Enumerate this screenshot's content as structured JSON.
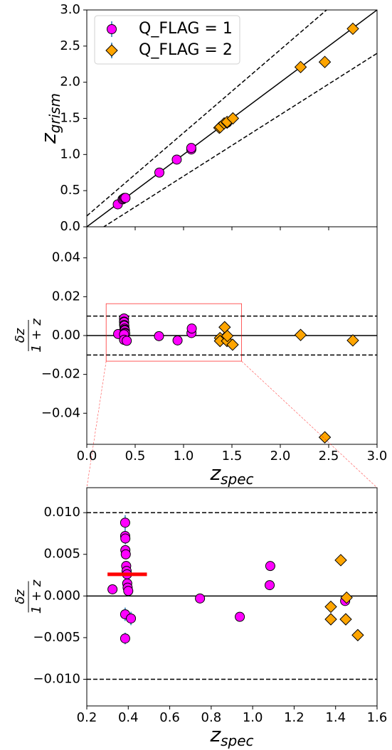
{
  "chart_data": [
    {
      "type": "scatter",
      "xlim": [
        0,
        3
      ],
      "ylim": [
        0,
        3
      ],
      "xticks": [
        {
          "value": 0,
          "label": "0.0"
        },
        0.5,
        {
          "value": 1,
          "label": "1.0"
        },
        1.5,
        {
          "value": 2,
          "label": "2.0"
        },
        2.5,
        {
          "value": 3,
          "label": "3.0"
        }
      ],
      "show_xtick_labels": false,
      "yticks": [
        {
          "value": 0,
          "label": "0.0"
        },
        0.5,
        {
          "value": 1,
          "label": "1.0"
        },
        1.5,
        {
          "value": 2,
          "label": "2.0"
        },
        2.5,
        {
          "value": 3,
          "label": "3.0"
        }
      ],
      "ylabel": "z",
      "ylabel_sub": "grism",
      "legend": "upper left",
      "lines": [
        {
          "slope": 1,
          "intercept": 0,
          "dash": false
        },
        {
          "slope": 1.15,
          "intercept": 0.15,
          "dash": true
        },
        {
          "slope": 0.85,
          "intercept": -0.15,
          "dash": true
        }
      ],
      "series": [
        {
          "name": "Q_FLAG = 1",
          "color": "#ff00ff",
          "marker": "circle",
          "x": [
            0.32,
            0.37,
            0.38,
            0.39,
            0.4,
            0.75,
            0.93,
            1.08,
            1.08,
            1.45
          ],
          "values": [
            0.31,
            0.38,
            0.39,
            0.4,
            0.4,
            0.75,
            0.93,
            1.07,
            1.09,
            1.44
          ]
        },
        {
          "name": "Q_FLAG = 2",
          "color": "#ffa500",
          "marker": "diamond",
          "x": [
            1.37,
            1.38,
            1.42,
            1.45,
            1.45,
            1.51,
            2.21,
            2.46,
            2.75
          ],
          "values": [
            1.37,
            1.38,
            1.43,
            1.44,
            1.45,
            1.5,
            2.21,
            2.28,
            2.74
          ]
        }
      ]
    },
    {
      "type": "scatter",
      "xlim": [
        0,
        3
      ],
      "ylim": [
        -0.056,
        0.056
      ],
      "xticks": [
        {
          "value": 0,
          "label": "0.0"
        },
        0.5,
        {
          "value": 1,
          "label": "1.0"
        },
        1.5,
        {
          "value": 2,
          "label": "2.0"
        },
        2.5,
        {
          "value": 3,
          "label": "3.0"
        }
      ],
      "show_xtick_labels": true,
      "yticks": [
        {
          "value": -0.04,
          "label": "−0.04"
        },
        {
          "value": -0.02,
          "label": "−0.02"
        },
        {
          "value": 0,
          "label": "0.00"
        },
        {
          "value": 0.02,
          "label": "0.02"
        },
        {
          "value": 0.04,
          "label": "0.04"
        }
      ],
      "ylabel_num": "δz",
      "ylabel_den": "1 + z",
      "xlabel": "z",
      "xlabel_sub": "spec",
      "hlines": [
        {
          "y": 0,
          "dash": false
        },
        {
          "y": 0.01,
          "dash": true
        },
        {
          "y": -0.01,
          "dash": true
        }
      ],
      "zoom_box": {
        "x": [
          0.2,
          1.6
        ],
        "y": [
          -0.0132,
          0.0164
        ],
        "color": "#ff0000"
      },
      "series": [
        {
          "color": "#ff00ff",
          "marker": "circle",
          "x": [
            0.324,
            0.385,
            0.385,
            0.386,
            0.386,
            0.388,
            0.39,
            0.392,
            0.394,
            0.395,
            0.397,
            0.385,
            0.385,
            0.413,
            0.746,
            0.938,
            1.082,
            1.085,
            1.446
          ],
          "values": [
            0.0008,
            0.0088,
            0.0072,
            0.0069,
            0.0055,
            0.005,
            0.0036,
            0.003,
            0.0026,
            0.0015,
            0.001,
            0.0006,
            -0.0022,
            -0.0027,
            -0.0003,
            -0.0025,
            0.0013,
            0.0036,
            -0.0006
          ]
        },
        {
          "color": "#ffa500",
          "marker": "diamond",
          "x": [
            1.377,
            1.377,
            1.425,
            1.449,
            1.453,
            1.507,
            2.21,
            2.46,
            2.75
          ],
          "values": [
            -0.0013,
            -0.0028,
            0.0043,
            -0.0028,
            -0.0002,
            -0.0047,
            0.0003,
            -0.0524,
            -0.0025
          ]
        }
      ]
    },
    {
      "type": "scatter",
      "xlim": [
        0.2,
        1.6
      ],
      "ylim": [
        -0.0132,
        0.013
      ],
      "xticks": [
        0.2,
        0.4,
        0.6,
        0.8,
        {
          "value": 1,
          "label": "1.0"
        },
        1.2,
        1.4,
        1.6
      ],
      "show_xtick_labels": true,
      "yticks": [
        {
          "value": -0.01,
          "label": "−0.010"
        },
        {
          "value": -0.005,
          "label": "−0.005"
        },
        {
          "value": 0,
          "label": "0.000"
        },
        {
          "value": 0.005,
          "label": "0.005"
        },
        {
          "value": 0.01,
          "label": "0.010"
        }
      ],
      "ylabel_num": "δz",
      "ylabel_den": "1 + z",
      "xlabel": "z",
      "xlabel_sub": "spec",
      "hlines": [
        {
          "y": 0,
          "dash": false
        },
        {
          "y": 0.01,
          "dash": true
        },
        {
          "y": -0.01,
          "dash": true
        }
      ],
      "median_bar": {
        "x": [
          0.3,
          0.49
        ],
        "y": 0.0026,
        "color": "#ff0000"
      },
      "series": [
        {
          "color": "#ff00ff",
          "marker": "circle",
          "error_color": "#1f77b4",
          "x": [
            0.324,
            0.385,
            0.385,
            0.386,
            0.386,
            0.388,
            0.39,
            0.392,
            0.394,
            0.395,
            0.397,
            0.4,
            0.385,
            0.385,
            0.413,
            0.746,
            0.938,
            1.082,
            1.085,
            1.446
          ],
          "values": [
            0.0008,
            0.0088,
            0.0072,
            0.0069,
            0.0055,
            0.005,
            0.0036,
            0.003,
            0.0026,
            0.0015,
            0.001,
            0.0006,
            -0.0022,
            -0.0051,
            -0.0027,
            -0.0003,
            -0.0025,
            0.0013,
            0.0036,
            -0.0006
          ],
          "errors": [
            0.0003,
            0.0009,
            0.0007,
            0.0007,
            0.0006,
            0.0006,
            0.0006,
            0.0006,
            0.0006,
            0.0006,
            0.0006,
            0.0006,
            0.0008,
            0.0007,
            0.0008,
            0.0003,
            0.0003,
            0.0003,
            0.0003,
            0.0003
          ]
        },
        {
          "color": "#ffa500",
          "marker": "diamond",
          "x": [
            1.377,
            1.377,
            1.425,
            1.449,
            1.453,
            1.507
          ],
          "values": [
            -0.0013,
            -0.0028,
            0.0043,
            -0.0028,
            -0.0002,
            -0.0047
          ]
        }
      ]
    }
  ]
}
